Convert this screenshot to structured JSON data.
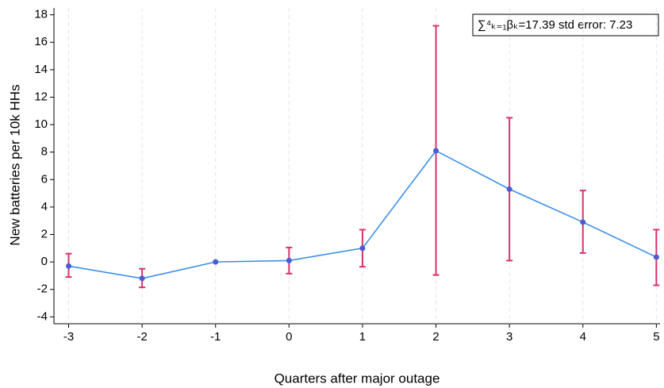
{
  "chart_data": {
    "type": "errorline",
    "xlabel": "Quarters after major outage",
    "ylabel": "New batteries per 10k HHs",
    "annotation": "∑⁴ₖ₌₁βₖ=17.39 std error: 7.23",
    "x": [
      -3,
      -2,
      -1,
      0,
      1,
      2,
      3,
      4,
      5
    ],
    "series": [
      {
        "color": "#3b8fe8",
        "marker_color": "#4b5bd6",
        "error_color": "#d8336b",
        "values": [
          -0.3,
          -1.2,
          0,
          0.1,
          1.0,
          8.1,
          5.3,
          2.9,
          0.35
        ],
        "lower": [
          -1.1,
          -1.85,
          0,
          -0.85,
          -0.35,
          -0.95,
          0.1,
          0.65,
          -1.7
        ],
        "upper": [
          0.6,
          -0.5,
          0,
          1.05,
          2.35,
          17.2,
          10.5,
          5.2,
          2.35
        ]
      }
    ],
    "xlim": [
      -3.2,
      5.05
    ],
    "xticks": [
      -3,
      -2,
      -1,
      0,
      1,
      2,
      3,
      4,
      5
    ],
    "ylim": [
      -4.5,
      18.5
    ],
    "yticks": [
      -4,
      -2,
      0,
      2,
      4,
      6,
      8,
      10,
      12,
      14,
      16,
      18
    ],
    "grid": "x"
  }
}
